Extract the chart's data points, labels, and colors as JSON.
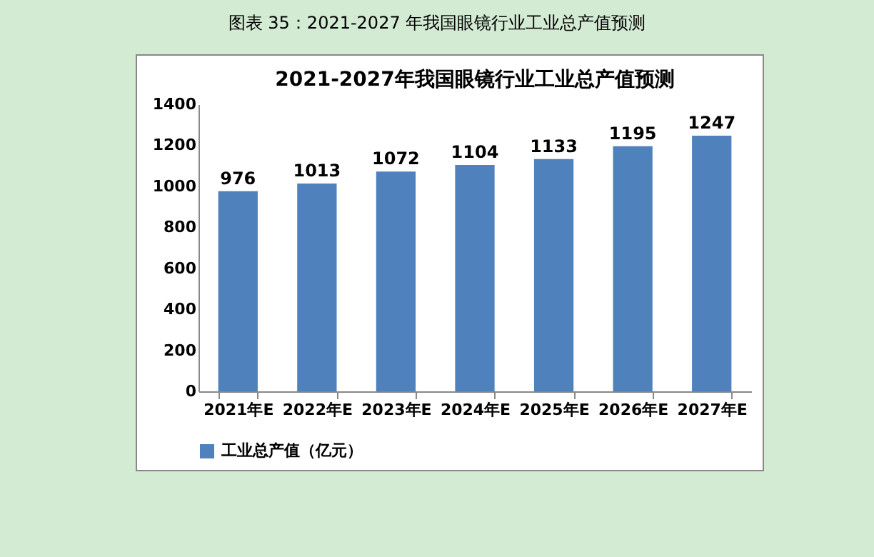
{
  "chart_data": {
    "type": "bar",
    "title": "2021-2027年我国眼镜行业工业总产值预测",
    "annotations": [
      "图表 35：2021-2027 年我国眼镜行业工业总产值预测"
    ],
    "categories": [
      "2021年E",
      "2022年E",
      "2023年E",
      "2024年E",
      "2025年E",
      "2026年E",
      "2027年E"
    ],
    "series": [
      {
        "name": "工业总产值（亿元）",
        "color": "#4f81bd",
        "values": [
          976,
          1013,
          1072,
          1104,
          1133,
          1195,
          1247
        ]
      }
    ],
    "ylim": [
      0,
      1400
    ],
    "yticks": [
      0,
      200,
      400,
      600,
      800,
      1000,
      1200,
      1400
    ],
    "grid": false,
    "legend": "bottom",
    "data_labels": true
  }
}
